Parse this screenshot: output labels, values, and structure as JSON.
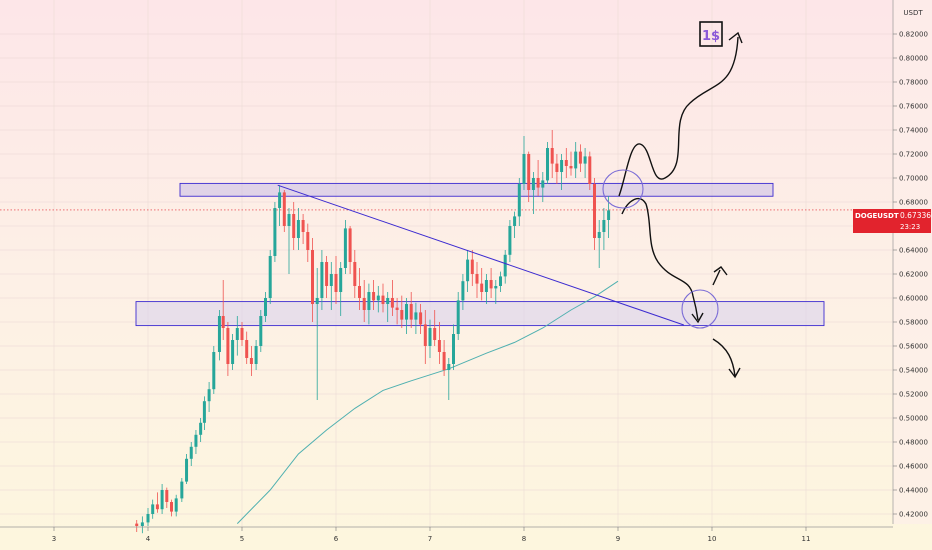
{
  "chart_data": {
    "type": "candlestick",
    "symbol": "DOGEUSDT",
    "currency_label": "USDT",
    "last_price": "0.67336",
    "countdown": "23:23",
    "annotation_text": "1$",
    "y_ticks": [
      "0.82000",
      "0.80000",
      "0.78000",
      "0.76000",
      "0.74000",
      "0.72000",
      "0.70000",
      "0.68000",
      "0.66000",
      "0.64000",
      "0.62000",
      "0.60000",
      "0.58000",
      "0.56000",
      "0.54000",
      "0.52000",
      "0.50000",
      "0.48000",
      "0.46000",
      "0.44000",
      "0.42000"
    ],
    "x_ticks": [
      "3",
      "4",
      "5",
      "6",
      "7",
      "8",
      "9",
      "10",
      "11"
    ],
    "ylim": [
      0.41,
      0.835
    ],
    "x_tick_values": [
      3,
      4,
      5,
      6,
      7,
      8,
      9,
      10,
      11
    ],
    "xlim": [
      2.55,
      11.95
    ],
    "resistance_zone": [
      0.6848,
      0.6955
    ],
    "support_zone": [
      0.577,
      0.597
    ],
    "trendline": [
      [
        5.38,
        0.694
      ],
      [
        9.7,
        0.5775
      ]
    ],
    "moving_average": [
      [
        4.95,
        0.412
      ],
      [
        5.3,
        0.44
      ],
      [
        5.6,
        0.47
      ],
      [
        5.9,
        0.49
      ],
      [
        6.2,
        0.508
      ],
      [
        6.5,
        0.523
      ],
      [
        6.8,
        0.531
      ],
      [
        7.2,
        0.541
      ],
      [
        7.6,
        0.554
      ],
      [
        7.9,
        0.563
      ],
      [
        8.2,
        0.575
      ],
      [
        8.5,
        0.59
      ],
      [
        8.75,
        0.601
      ],
      [
        9.0,
        0.614
      ]
    ],
    "candles": [
      [
        3.88,
        0.412,
        0.415,
        0.405,
        0.41
      ],
      [
        3.94,
        0.41,
        0.418,
        0.404,
        0.413
      ],
      [
        4.0,
        0.413,
        0.425,
        0.41,
        0.42
      ],
      [
        4.05,
        0.42,
        0.432,
        0.416,
        0.428
      ],
      [
        4.1,
        0.428,
        0.438,
        0.421,
        0.424
      ],
      [
        4.15,
        0.424,
        0.445,
        0.42,
        0.44
      ],
      [
        4.2,
        0.44,
        0.442,
        0.425,
        0.43
      ],
      [
        4.25,
        0.43,
        0.432,
        0.418,
        0.422
      ],
      [
        4.3,
        0.422,
        0.436,
        0.418,
        0.433
      ],
      [
        4.36,
        0.433,
        0.45,
        0.43,
        0.447
      ],
      [
        4.41,
        0.447,
        0.47,
        0.445,
        0.466
      ],
      [
        4.46,
        0.466,
        0.48,
        0.46,
        0.476
      ],
      [
        4.51,
        0.476,
        0.49,
        0.47,
        0.486
      ],
      [
        4.56,
        0.486,
        0.5,
        0.48,
        0.496
      ],
      [
        4.6,
        0.496,
        0.518,
        0.49,
        0.514
      ],
      [
        4.65,
        0.514,
        0.53,
        0.505,
        0.524
      ],
      [
        4.7,
        0.524,
        0.56,
        0.52,
        0.555
      ],
      [
        4.76,
        0.555,
        0.59,
        0.548,
        0.585
      ],
      [
        4.8,
        0.585,
        0.615,
        0.565,
        0.575
      ],
      [
        4.85,
        0.575,
        0.58,
        0.535,
        0.545
      ],
      [
        4.9,
        0.545,
        0.57,
        0.54,
        0.565
      ],
      [
        4.95,
        0.565,
        0.585,
        0.552,
        0.575
      ],
      [
        5.0,
        0.575,
        0.58,
        0.56,
        0.565
      ],
      [
        5.05,
        0.565,
        0.572,
        0.545,
        0.55
      ],
      [
        5.1,
        0.55,
        0.56,
        0.535,
        0.545
      ],
      [
        5.15,
        0.545,
        0.565,
        0.54,
        0.56
      ],
      [
        5.2,
        0.56,
        0.59,
        0.555,
        0.585
      ],
      [
        5.25,
        0.585,
        0.605,
        0.58,
        0.6
      ],
      [
        5.3,
        0.6,
        0.64,
        0.595,
        0.635
      ],
      [
        5.35,
        0.635,
        0.68,
        0.63,
        0.675
      ],
      [
        5.4,
        0.675,
        0.694,
        0.66,
        0.688
      ],
      [
        5.45,
        0.688,
        0.69,
        0.655,
        0.66
      ],
      [
        5.5,
        0.66,
        0.675,
        0.62,
        0.67
      ],
      [
        5.55,
        0.67,
        0.68,
        0.64,
        0.65
      ],
      [
        5.6,
        0.65,
        0.675,
        0.64,
        0.665
      ],
      [
        5.65,
        0.665,
        0.67,
        0.645,
        0.655
      ],
      [
        5.7,
        0.655,
        0.662,
        0.63,
        0.64
      ],
      [
        5.75,
        0.64,
        0.65,
        0.58,
        0.595
      ],
      [
        5.8,
        0.595,
        0.625,
        0.515,
        0.6
      ],
      [
        5.85,
        0.6,
        0.64,
        0.59,
        0.63
      ],
      [
        5.9,
        0.63,
        0.635,
        0.6,
        0.61
      ],
      [
        5.95,
        0.61,
        0.63,
        0.59,
        0.62
      ],
      [
        6.0,
        0.62,
        0.635,
        0.595,
        0.605
      ],
      [
        6.05,
        0.605,
        0.63,
        0.585,
        0.625
      ],
      [
        6.1,
        0.625,
        0.665,
        0.62,
        0.658
      ],
      [
        6.15,
        0.658,
        0.66,
        0.62,
        0.63
      ],
      [
        6.2,
        0.63,
        0.64,
        0.6,
        0.61
      ],
      [
        6.25,
        0.61,
        0.625,
        0.59,
        0.6
      ],
      [
        6.3,
        0.6,
        0.615,
        0.58,
        0.59
      ],
      [
        6.35,
        0.59,
        0.612,
        0.578,
        0.605
      ],
      [
        6.4,
        0.605,
        0.615,
        0.59,
        0.598
      ],
      [
        6.45,
        0.598,
        0.61,
        0.588,
        0.602
      ],
      [
        6.5,
        0.602,
        0.612,
        0.588,
        0.595
      ],
      [
        6.55,
        0.595,
        0.605,
        0.58,
        0.6
      ],
      [
        6.6,
        0.6,
        0.615,
        0.585,
        0.592
      ],
      [
        6.65,
        0.592,
        0.6,
        0.578,
        0.59
      ],
      [
        6.7,
        0.59,
        0.602,
        0.575,
        0.582
      ],
      [
        6.75,
        0.582,
        0.6,
        0.57,
        0.595
      ],
      [
        6.8,
        0.595,
        0.605,
        0.575,
        0.582
      ],
      [
        6.85,
        0.582,
        0.596,
        0.57,
        0.588
      ],
      [
        6.9,
        0.588,
        0.595,
        0.57,
        0.578
      ],
      [
        6.95,
        0.578,
        0.59,
        0.545,
        0.56
      ],
      [
        7.0,
        0.56,
        0.582,
        0.55,
        0.575
      ],
      [
        7.05,
        0.575,
        0.59,
        0.56,
        0.565
      ],
      [
        7.1,
        0.565,
        0.58,
        0.545,
        0.555
      ],
      [
        7.15,
        0.555,
        0.565,
        0.535,
        0.54
      ],
      [
        7.2,
        0.54,
        0.55,
        0.515,
        0.545
      ],
      [
        7.25,
        0.545,
        0.578,
        0.54,
        0.57
      ],
      [
        7.3,
        0.57,
        0.605,
        0.565,
        0.598
      ],
      [
        7.35,
        0.598,
        0.62,
        0.59,
        0.614
      ],
      [
        7.4,
        0.614,
        0.64,
        0.605,
        0.632
      ],
      [
        7.45,
        0.632,
        0.64,
        0.61,
        0.62
      ],
      [
        7.5,
        0.62,
        0.63,
        0.6,
        0.612
      ],
      [
        7.55,
        0.612,
        0.625,
        0.598,
        0.605
      ],
      [
        7.6,
        0.605,
        0.62,
        0.595,
        0.615
      ],
      [
        7.65,
        0.615,
        0.625,
        0.6,
        0.608
      ],
      [
        7.7,
        0.608,
        0.615,
        0.595,
        0.61
      ],
      [
        7.75,
        0.61,
        0.622,
        0.605,
        0.618
      ],
      [
        7.8,
        0.618,
        0.64,
        0.612,
        0.636
      ],
      [
        7.85,
        0.636,
        0.665,
        0.63,
        0.66
      ],
      [
        7.9,
        0.66,
        0.672,
        0.65,
        0.668
      ],
      [
        7.95,
        0.668,
        0.7,
        0.66,
        0.695
      ],
      [
        8.0,
        0.695,
        0.735,
        0.69,
        0.72
      ],
      [
        8.05,
        0.72,
        0.722,
        0.68,
        0.69
      ],
      [
        8.1,
        0.69,
        0.705,
        0.67,
        0.7
      ],
      [
        8.15,
        0.7,
        0.715,
        0.685,
        0.692
      ],
      [
        8.2,
        0.692,
        0.705,
        0.68,
        0.698
      ],
      [
        8.25,
        0.698,
        0.73,
        0.695,
        0.725
      ],
      [
        8.3,
        0.725,
        0.74,
        0.7,
        0.712
      ],
      [
        8.35,
        0.712,
        0.72,
        0.695,
        0.705
      ],
      [
        8.4,
        0.705,
        0.72,
        0.69,
        0.715
      ],
      [
        8.45,
        0.715,
        0.725,
        0.7,
        0.71
      ],
      [
        8.5,
        0.71,
        0.722,
        0.702,
        0.708
      ],
      [
        8.55,
        0.708,
        0.73,
        0.7,
        0.722
      ],
      [
        8.6,
        0.722,
        0.728,
        0.705,
        0.712
      ],
      [
        8.65,
        0.712,
        0.725,
        0.7,
        0.718
      ],
      [
        8.7,
        0.718,
        0.722,
        0.69,
        0.695
      ],
      [
        8.75,
        0.695,
        0.7,
        0.64,
        0.65
      ],
      [
        8.8,
        0.65,
        0.665,
        0.625,
        0.655
      ],
      [
        8.85,
        0.655,
        0.675,
        0.64,
        0.665
      ],
      [
        8.9,
        0.665,
        0.685,
        0.65,
        0.673
      ]
    ]
  }
}
